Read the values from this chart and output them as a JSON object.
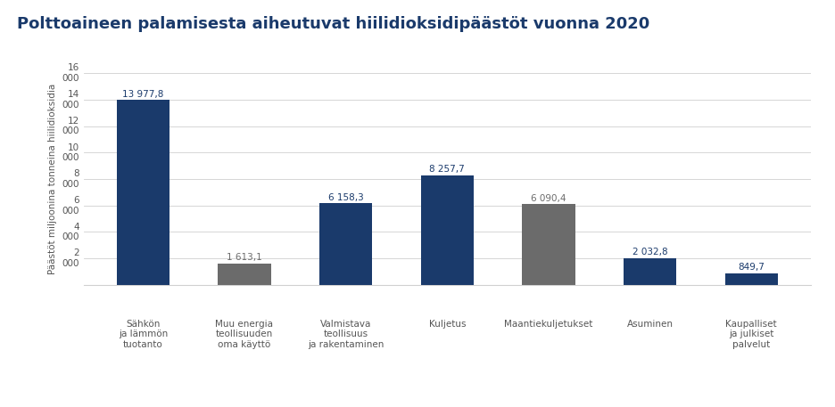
{
  "title": "Polttoaineen palamisesta aiheutuvat hiilidioksidipäästöt vuonna 2020",
  "categories": [
    "Sähkön\nja lämmön\ntuotanto",
    "Muu energia\nteollisuuden\noma käyttö",
    "Valmistava\nteollisuus\nja rakentaminen",
    "Kuljetus",
    "Maantiekuljetukset",
    "Asuminen",
    "Kaupalliset\nja julkiset\npalvelut"
  ],
  "values": [
    13977.8,
    1613.1,
    6158.3,
    8257.7,
    6090.4,
    2032.8,
    849.7
  ],
  "bar_colors": [
    "#1a3a6b",
    "#6b6b6b",
    "#1a3a6b",
    "#1a3a6b",
    "#6b6b6b",
    "#1a3a6b",
    "#1a3a6b"
  ],
  "value_labels": [
    "13 977,8",
    "1 613,1",
    "6 158,3",
    "8 257,7",
    "6 090,4",
    "2 032,8",
    "849,7"
  ],
  "value_colors": [
    "#1a3a6b",
    "#6b6b6b",
    "#1a3a6b",
    "#1a3a6b",
    "#6b6b6b",
    "#1a3a6b",
    "#1a3a6b"
  ],
  "ylabel": "Päästöt miljoonina tonneina hiilidioksidia",
  "ylim": [
    0,
    16000
  ],
  "yticks": [
    0,
    2000,
    4000,
    6000,
    8000,
    10000,
    12000,
    14000,
    16000
  ],
  "ytick_labels": [
    "",
    "2\n000",
    "4\n000",
    "6\n000",
    "8\n000",
    "10\n000",
    "12\n000",
    "14\n000",
    "16\n000"
  ],
  "title_color": "#1a3a6b",
  "title_fontsize": 13,
  "background_color": "#ffffff",
  "grid_color": "#d0d0d0"
}
